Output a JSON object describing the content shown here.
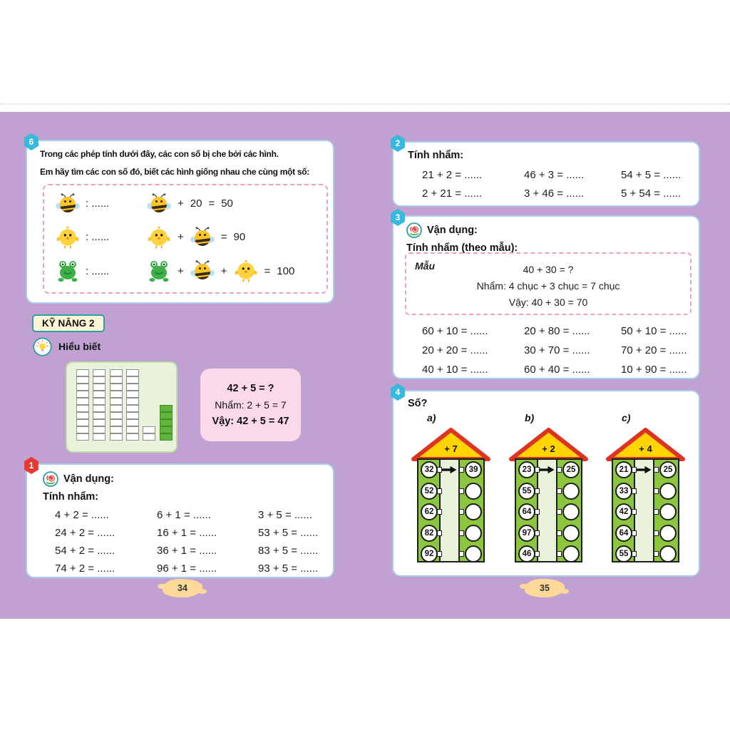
{
  "colors": {
    "background_purple": "#c0a1d2",
    "panel_border_blue": "#a9cdee",
    "badge_cyan": "#35b9dd",
    "badge_red": "#e8392f",
    "dashed_pink": "#f29fc4",
    "skill_box_bg": "#fdf5d3",
    "skill_box_border": "#2aa0a4",
    "pink_box_bg": "#fbd9ea",
    "block_green": "#5eb63d",
    "house_green": "#8cc63f",
    "roof_yellow": "#ffd400",
    "roof_red": "#dd3322",
    "page_tab_tan": "#fcd998"
  },
  "left_page": {
    "ex6": {
      "badge": "6",
      "line1": "Trong các phép tính dưới đây, các con số bị che bởi các hình.",
      "line2": "Em hãy tìm các con số đó, biết các hình giống nhau che cùng một số:",
      "rows": [
        {
          "animal": "bee",
          "blank": ": ......",
          "tokens": [
            [
              "icon",
              "bee"
            ],
            [
              "text",
              "+"
            ],
            [
              "text",
              "20"
            ],
            [
              "text",
              "="
            ],
            [
              "text",
              "50"
            ]
          ]
        },
        {
          "animal": "chick",
          "blank": ": ......",
          "tokens": [
            [
              "icon",
              "chick"
            ],
            [
              "text",
              "+"
            ],
            [
              "icon",
              "bee"
            ],
            [
              "text",
              "="
            ],
            [
              "text",
              "90"
            ]
          ]
        },
        {
          "animal": "frog",
          "blank": ": ......",
          "tokens": [
            [
              "icon",
              "frog"
            ],
            [
              "text",
              "+"
            ],
            [
              "icon",
              "bee"
            ],
            [
              "text",
              "+"
            ],
            [
              "icon",
              "chick"
            ],
            [
              "text",
              "="
            ],
            [
              "text",
              "100"
            ]
          ]
        }
      ]
    },
    "skill_badge": "KỸ NĂNG 2",
    "understanding_label": "Hiểu biết",
    "example_box": {
      "line1": "42 + 5 = ?",
      "line2": "Nhẩm: 2 + 5 = 7",
      "line3": "Vậy: 42 + 5 = 47"
    },
    "ex1": {
      "badge": "1",
      "apply_label": "Vận dụng:",
      "title": "Tính nhẩm:",
      "rows": [
        [
          "4 + 2 = ......",
          "6 + 1 = ......",
          "3 + 5 = ......"
        ],
        [
          "24 + 2 = ......",
          "16 + 1 = ......",
          "53 + 5 = ......"
        ],
        [
          "54 + 2 = ......",
          "36 + 1 = ......",
          "83 + 5 = ......"
        ],
        [
          "74 + 2 = ......",
          "96 + 1 = ......",
          "93 + 5 = ......"
        ]
      ]
    },
    "page_number": "34"
  },
  "right_page": {
    "ex2": {
      "badge": "2",
      "title": "Tính nhẩm:",
      "rows": [
        [
          "21 + 2 = ......",
          "46 + 3 = ......",
          "54 + 5 = ......"
        ],
        [
          "2 + 21 = ......",
          "3 + 46 = ......",
          "5 + 54 = ......"
        ]
      ]
    },
    "ex3": {
      "badge": "3",
      "apply_label": "Vận dụng:",
      "title": "Tính nhẩm (theo mẫu):",
      "sample": {
        "label": "Mẫu",
        "line1": "40 + 30 = ?",
        "line2": "Nhẩm: 4 chục + 3 chục = 7 chục",
        "line3": "Vậy: 40 + 30 = 70"
      },
      "rows": [
        [
          "60 + 10 = ......",
          "20 + 80 = ......",
          "50 + 10 = ......"
        ],
        [
          "20 + 20 = ......",
          "30 + 70 = ......",
          "70 + 20 = ......"
        ],
        [
          "40 + 10 = ......",
          "60 + 40 = ......",
          "10 + 90 = ......"
        ]
      ]
    },
    "ex4": {
      "badge": "4",
      "title": "Số?",
      "houses": [
        {
          "label": "a)",
          "op": "+ 7",
          "rows": [
            [
              "32",
              "39"
            ],
            [
              "52",
              ""
            ],
            [
              "62",
              ""
            ],
            [
              "82",
              ""
            ],
            [
              "92",
              ""
            ]
          ]
        },
        {
          "label": "b)",
          "op": "+ 2",
          "rows": [
            [
              "23",
              "25"
            ],
            [
              "55",
              ""
            ],
            [
              "64",
              ""
            ],
            [
              "97",
              ""
            ],
            [
              "46",
              ""
            ]
          ]
        },
        {
          "label": "c)",
          "op": "+ 4",
          "rows": [
            [
              "21",
              "25"
            ],
            [
              "33",
              ""
            ],
            [
              "42",
              ""
            ],
            [
              "64",
              ""
            ],
            [
              "55",
              ""
            ]
          ]
        }
      ]
    },
    "page_number": "35"
  }
}
